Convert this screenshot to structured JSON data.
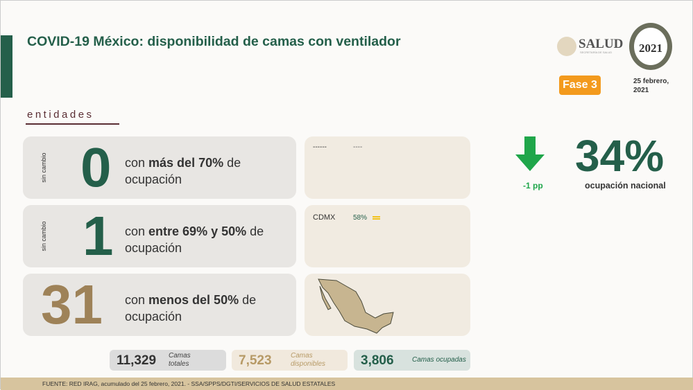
{
  "header": {
    "title": "COVID-19 México: disponibilidad de camas con ventilador",
    "salud_logo": "SALUD",
    "salud_sub": "SECRETARÍA DE SALUD",
    "anniversary_logo": "México 2021 Año de la Independencia",
    "phase": "Fase 3",
    "date_line1": "25 febrero,",
    "date_line2": "2021"
  },
  "section_label": "entidades",
  "rows": [
    {
      "side": "sin cambio",
      "count": "0",
      "pre": "con ",
      "bold": "más del 70%",
      "post": " de ocupación",
      "color": "#245f4a",
      "states": [
        {
          "name": "------",
          "value": "----"
        }
      ]
    },
    {
      "side": "sin cambio",
      "count": "1",
      "pre": "con ",
      "bold": "entre 69% y 50%",
      "post": " de ocupación",
      "color": "#245f4a",
      "states": [
        {
          "name": "CDMX",
          "value": "58%",
          "trend": "equal-icon"
        }
      ]
    },
    {
      "side": "",
      "count": "31",
      "pre": "con ",
      "bold": "menos del 50%",
      "post": " de ocupación",
      "color": "#9e8258"
    }
  ],
  "national": {
    "value": "34%",
    "label": "ocupación nacional",
    "change": "-1 pp",
    "trend": "down-arrow",
    "trend_color": "#1fa64a"
  },
  "stats": [
    {
      "value": "11,329",
      "label": "Camas totales"
    },
    {
      "value": "7,523",
      "label": "Camas disponibles"
    },
    {
      "value": "3,806",
      "label": "Camas ocupadas"
    }
  ],
  "footer": "FUENTE: RED IRAG, acumulado del 25 febrero, 2021. -  SSA/SPPS/DGTI/SERVICIOS DE SALUD ESTATALES",
  "colors": {
    "green": "#245f4a",
    "gold": "#9e8258",
    "orange": "#f39a1d"
  }
}
